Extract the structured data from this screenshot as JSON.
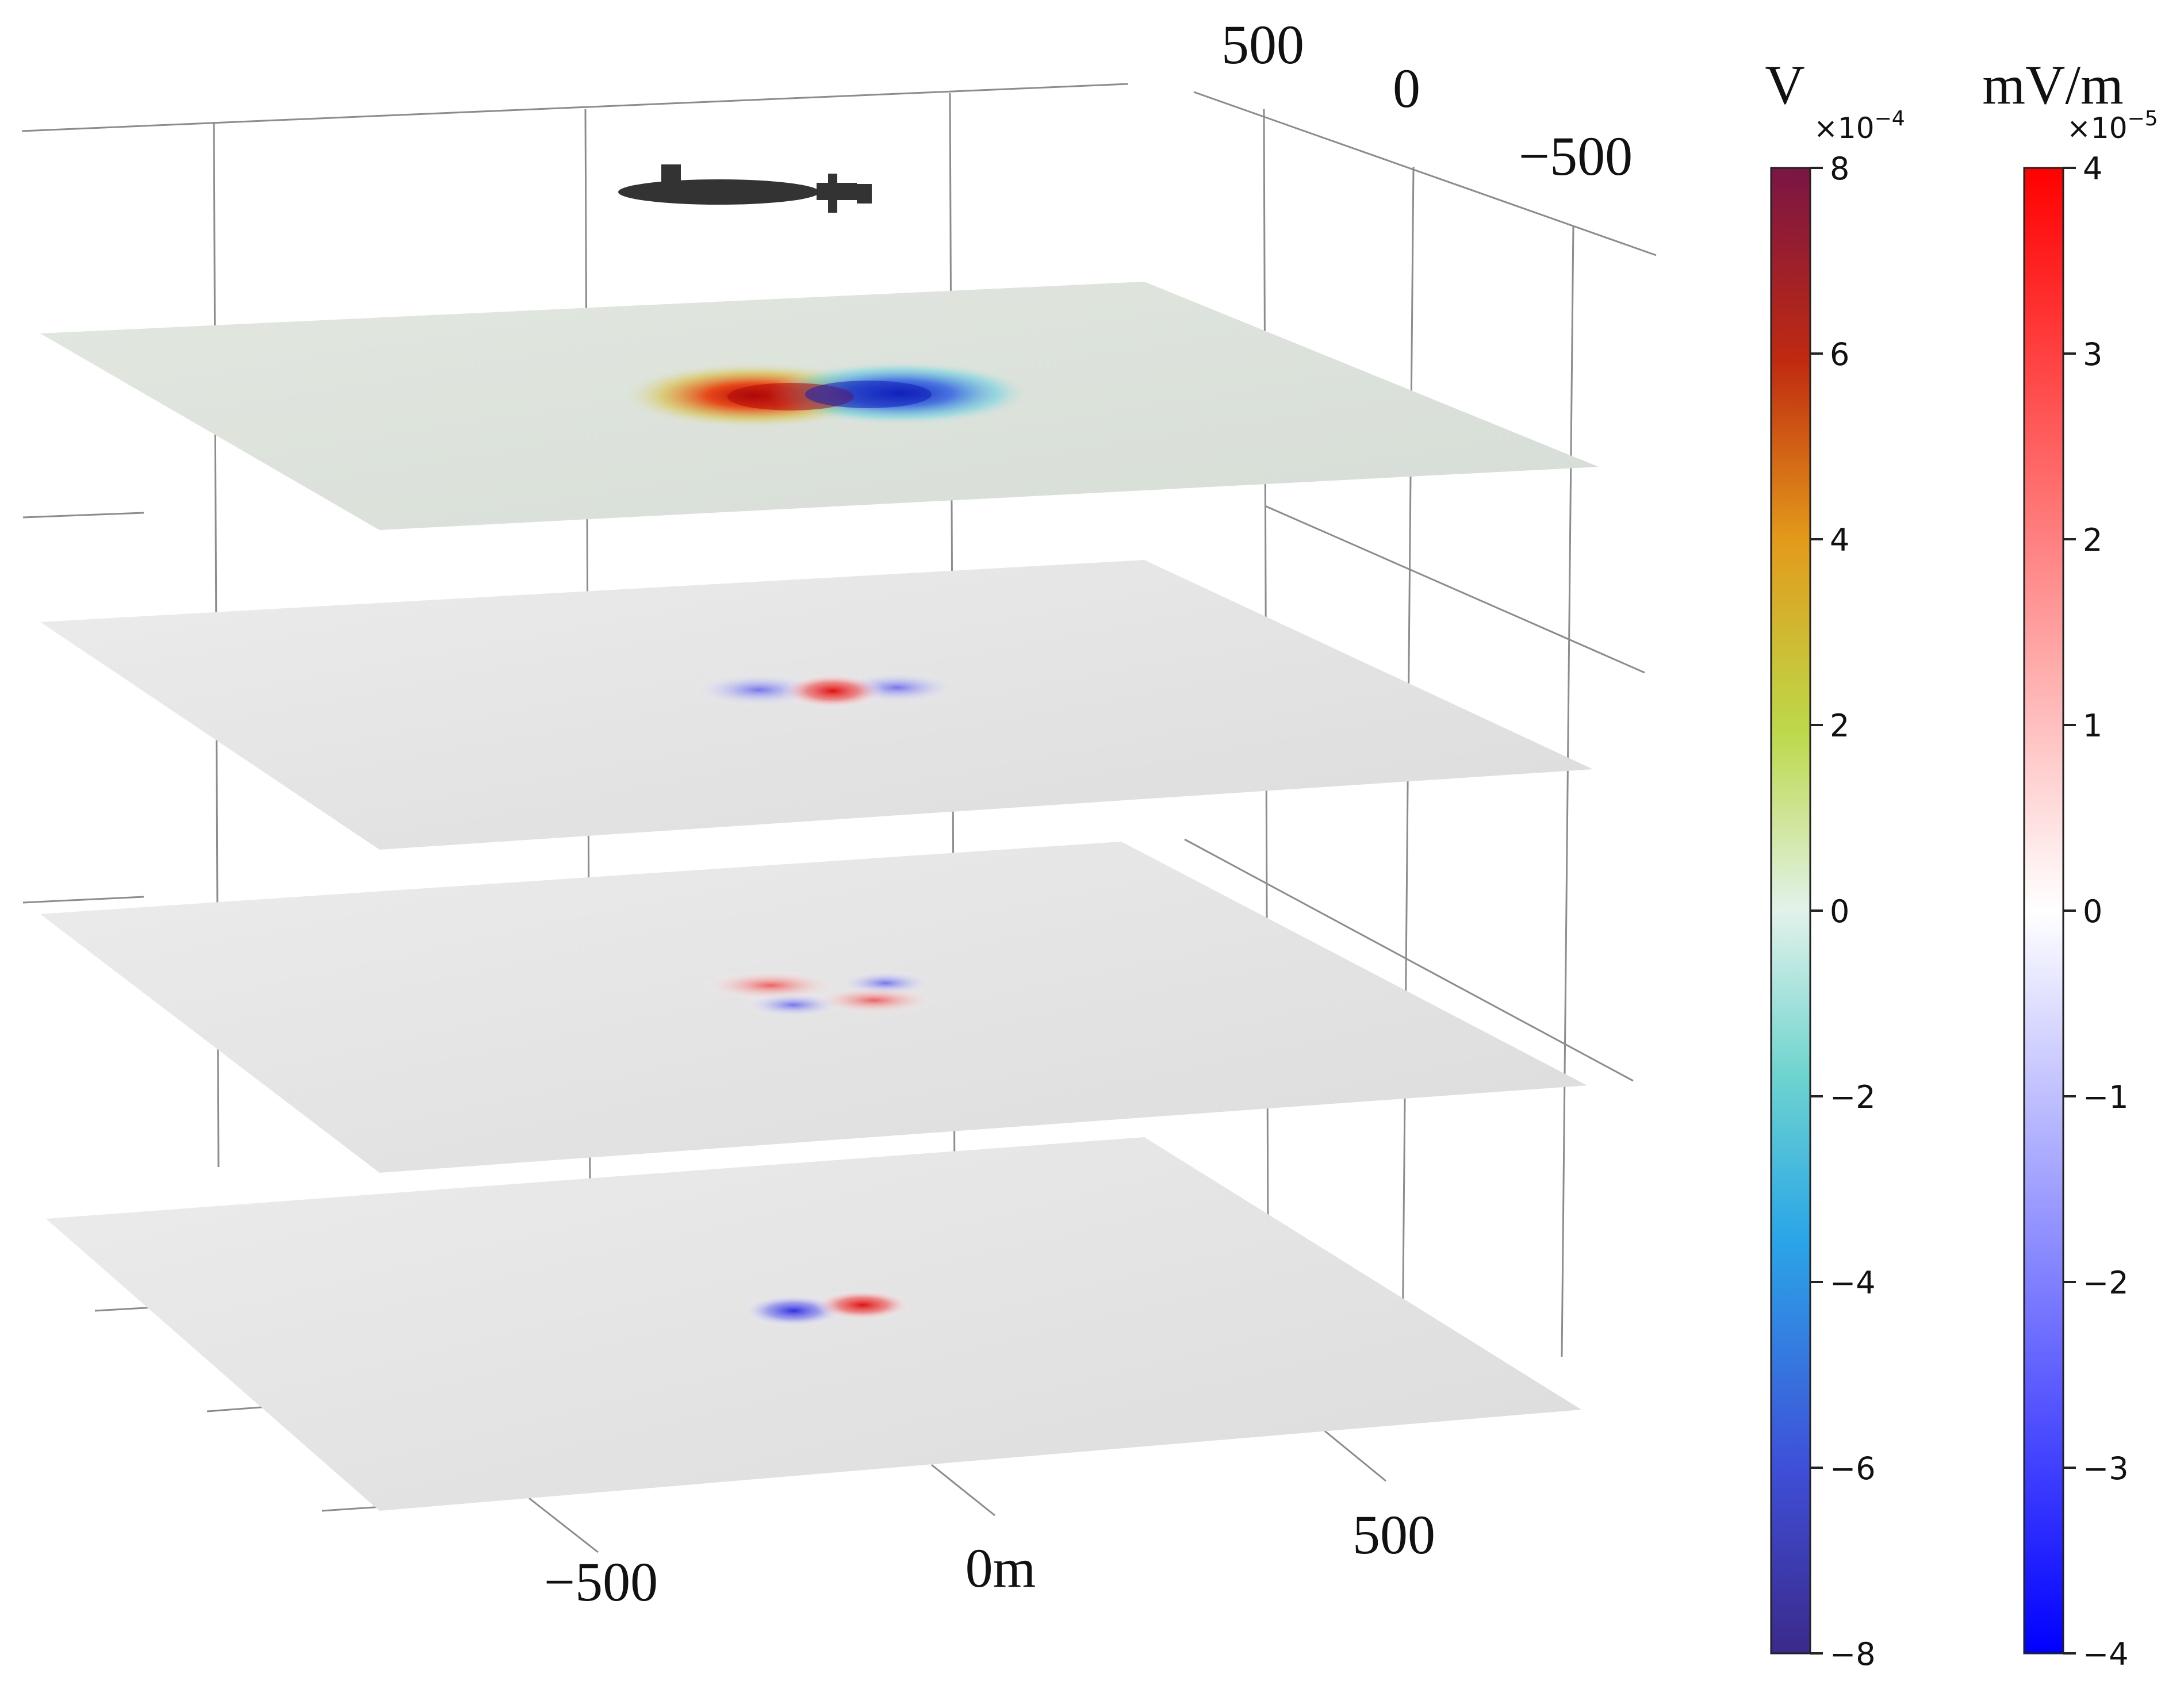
{
  "axes": {
    "x_ticks": [
      "−500",
      "0m",
      "500"
    ],
    "y_ticks": [
      "500",
      "0",
      "−500"
    ]
  },
  "colorbars": [
    {
      "unit": "V",
      "multiplier_base": "×10",
      "multiplier_exp": "−4",
      "ticks": [
        "8",
        "6",
        "4",
        "2",
        "0",
        "−2",
        "−4",
        "−6",
        "−8"
      ],
      "colormap": [
        "#3a2a8a",
        "#3f4fd8",
        "#2aa6e8",
        "#6fd4cf",
        "#e2f2ea",
        "#bcd94a",
        "#e39a1a",
        "#c02a10",
        "#7a1545"
      ]
    },
    {
      "unit": "mV/m",
      "multiplier_base": "×10",
      "multiplier_exp": "−5",
      "ticks": [
        "4",
        "3",
        "2",
        "1",
        "0",
        "−1",
        "−2",
        "−3",
        "−4"
      ],
      "colormap": [
        "#0000ff",
        "#ffffff",
        "#ff0000"
      ]
    }
  ],
  "planes": [
    {
      "quantity": "potential",
      "plane_color": "#dde4dc",
      "lobes": [
        {
          "color": "#c01010",
          "sign": "+"
        },
        {
          "color": "#2030c8",
          "sign": "−"
        }
      ]
    },
    {
      "quantity": "field",
      "plane_color": "#e3e3e3",
      "lobes": [
        {
          "color": "#e01818",
          "sign": "+"
        },
        {
          "color": "#5a5ae6",
          "sign": "−"
        }
      ]
    },
    {
      "quantity": "field",
      "plane_color": "#e6e6e6",
      "lobes": [
        {
          "color": "#e03030",
          "sign": "+"
        },
        {
          "color": "#5050e0",
          "sign": "−"
        }
      ]
    },
    {
      "quantity": "field",
      "plane_color": "#eaeaea",
      "lobes": [
        {
          "color": "#e01818",
          "sign": "+"
        },
        {
          "color": "#3838e0",
          "sign": "−"
        }
      ]
    }
  ],
  "submarine": {
    "icon": "submarine-icon",
    "color": "#333333"
  }
}
